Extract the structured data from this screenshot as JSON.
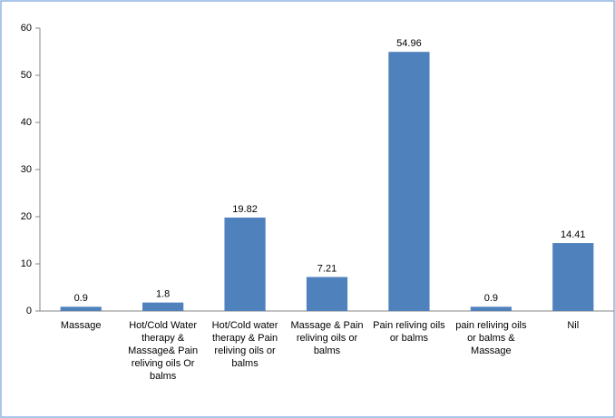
{
  "chart_data": {
    "type": "bar",
    "categories": [
      "Massage",
      "Hot/Cold Water therapy & Massage& Pain reliving oils Or balms",
      "Hot/Cold water therapy & Pain reliving oils or balms",
      "Massage & Pain reliving oils or balms",
      "Pain reliving oils or balms",
      "pain reliving oils or balms & Massage",
      "Nil"
    ],
    "values": [
      0.9,
      1.8,
      19.82,
      7.21,
      54.96,
      0.9,
      14.41
    ],
    "color": "#4f81bd",
    "ylim": [
      0,
      60
    ],
    "yticks": [
      0,
      10,
      20,
      30,
      40,
      50,
      60
    ],
    "grid": false
  }
}
